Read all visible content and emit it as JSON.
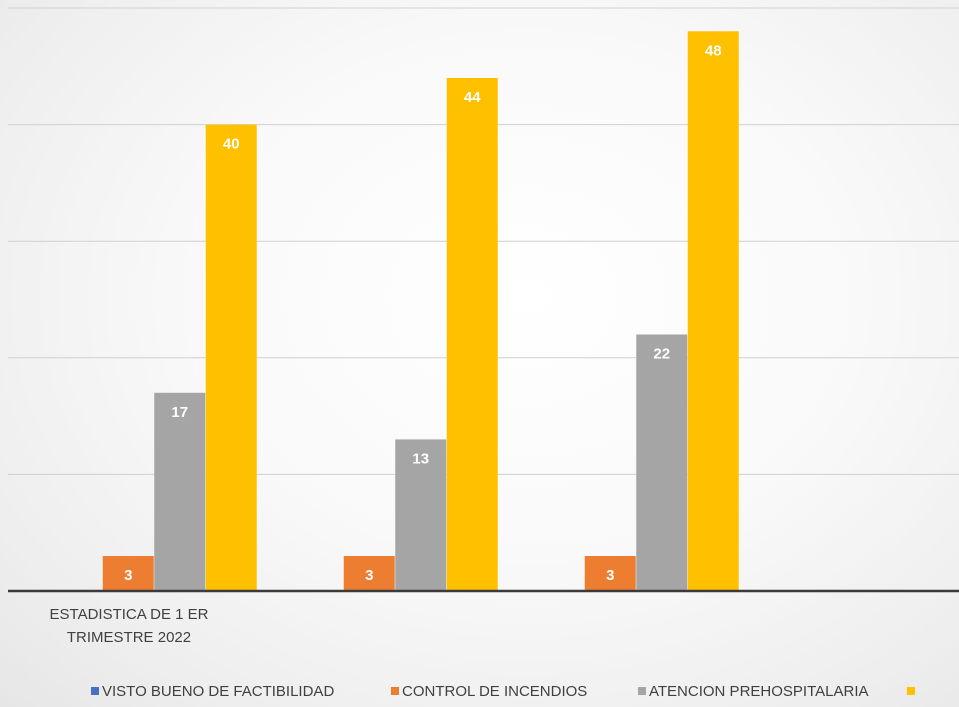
{
  "chart_data": {
    "type": "bar",
    "categories": [
      "ESTADISTICA DE 1 ER TRIMESTRE 2022",
      "",
      ""
    ],
    "series": [
      {
        "name": "VISTO BUENO DE FACTIBILIDAD",
        "color": "#4472C4",
        "values": [
          0,
          0,
          0
        ]
      },
      {
        "name": "CONTROL DE INCENDIOS",
        "color": "#ED7D31",
        "values": [
          3,
          3,
          3
        ]
      },
      {
        "name": "ATENCION PREHOSPITALARIA",
        "color": "#A5A5A5",
        "values": [
          17,
          13,
          22
        ]
      },
      {
        "name": "",
        "color": "#FFC000",
        "values": [
          40,
          44,
          48
        ]
      }
    ],
    "ylim": [
      0,
      50
    ],
    "gridlines": true,
    "legend_position": "bottom",
    "data_labels": true,
    "category_label_lines": [
      "ESTADISTICA DE 1 ER",
      "TRIMESTRE 2022"
    ]
  }
}
